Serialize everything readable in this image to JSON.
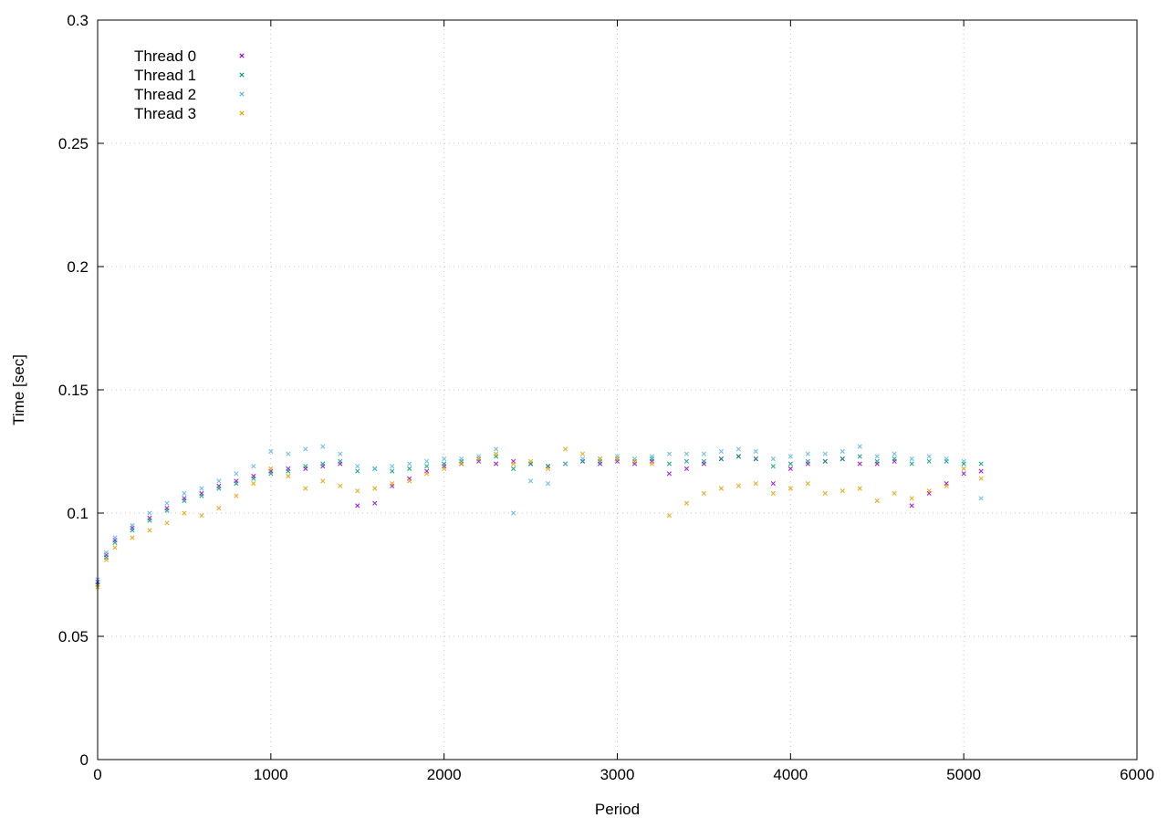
{
  "chart_data": {
    "type": "scatter",
    "title": "",
    "xlabel": "Period",
    "ylabel": "Time [sec]",
    "xlim": [
      0,
      6000
    ],
    "ylim": [
      0,
      0.3
    ],
    "xticks": [
      0,
      1000,
      2000,
      3000,
      4000,
      5000,
      6000
    ],
    "yticks": [
      0,
      0.05,
      0.1,
      0.15,
      0.2,
      0.25,
      0.3
    ],
    "xtick_labels": [
      "0",
      "1000",
      "2000",
      "3000",
      "4000",
      "5000",
      "6000"
    ],
    "ytick_labels": [
      "0",
      "0.05",
      "0.1",
      "0.15",
      "0.2",
      "0.25",
      "0.3"
    ],
    "grid": true,
    "legend_position": "top-left",
    "series": [
      {
        "name": "Thread 0",
        "color": "#9400d3",
        "marker": "cross",
        "x": [
          0,
          50,
          100,
          200,
          300,
          400,
          500,
          600,
          700,
          800,
          900,
          1000,
          1100,
          1200,
          1300,
          1400,
          1500,
          1600,
          1700,
          1800,
          1900,
          2000,
          2100,
          2200,
          2300,
          2400,
          2500,
          2600,
          2700,
          2800,
          2900,
          3000,
          3100,
          3200,
          3300,
          3400,
          3500,
          3600,
          3700,
          3800,
          3900,
          4000,
          4100,
          4200,
          4300,
          4400,
          4500,
          4600,
          4700,
          4800,
          4900,
          5000,
          5100
        ],
        "y": [
          0.072,
          0.083,
          0.089,
          0.094,
          0.098,
          0.102,
          0.106,
          0.108,
          0.111,
          0.113,
          0.115,
          0.117,
          0.118,
          0.118,
          0.119,
          0.12,
          0.103,
          0.104,
          0.111,
          0.114,
          0.117,
          0.119,
          0.12,
          0.121,
          0.12,
          0.121,
          0.12,
          0.119,
          0.12,
          0.121,
          0.12,
          0.121,
          0.12,
          0.121,
          0.116,
          0.118,
          0.12,
          0.122,
          0.123,
          0.122,
          0.112,
          0.118,
          0.12,
          0.121,
          0.122,
          0.12,
          0.12,
          0.121,
          0.103,
          0.108,
          0.112,
          0.116,
          0.117
        ]
      },
      {
        "name": "Thread 1",
        "color": "#009e73",
        "marker": "cross",
        "x": [
          0,
          50,
          100,
          200,
          300,
          400,
          500,
          600,
          700,
          800,
          900,
          1000,
          1100,
          1200,
          1300,
          1400,
          1500,
          1600,
          1700,
          1800,
          1900,
          2000,
          2100,
          2200,
          2300,
          2400,
          2500,
          2600,
          2700,
          2800,
          2900,
          3000,
          3100,
          3200,
          3300,
          3400,
          3500,
          3600,
          3700,
          3800,
          3900,
          4000,
          4100,
          4200,
          4300,
          4400,
          4500,
          4600,
          4700,
          4800,
          4900,
          5000,
          5100
        ],
        "y": [
          0.071,
          0.082,
          0.088,
          0.093,
          0.097,
          0.101,
          0.105,
          0.107,
          0.11,
          0.112,
          0.114,
          0.116,
          0.117,
          0.119,
          0.12,
          0.121,
          0.117,
          0.118,
          0.117,
          0.118,
          0.119,
          0.12,
          0.121,
          0.122,
          0.123,
          0.118,
          0.12,
          0.119,
          0.12,
          0.121,
          0.121,
          0.122,
          0.121,
          0.122,
          0.12,
          0.121,
          0.121,
          0.122,
          0.123,
          0.122,
          0.119,
          0.12,
          0.121,
          0.121,
          0.122,
          0.123,
          0.121,
          0.122,
          0.12,
          0.121,
          0.121,
          0.12,
          0.12
        ]
      },
      {
        "name": "Thread 2",
        "color": "#56b4e9",
        "marker": "cross",
        "x": [
          0,
          50,
          100,
          200,
          300,
          400,
          500,
          600,
          700,
          800,
          900,
          1000,
          1100,
          1200,
          1300,
          1400,
          1500,
          1600,
          1700,
          1800,
          1900,
          2000,
          2100,
          2200,
          2300,
          2400,
          2500,
          2600,
          2700,
          2800,
          2900,
          3000,
          3100,
          3200,
          3300,
          3400,
          3500,
          3600,
          3700,
          3800,
          3900,
          4000,
          4100,
          4200,
          4300,
          4400,
          4500,
          4600,
          4700,
          4800,
          4900,
          5000,
          5100
        ],
        "y": [
          0.073,
          0.084,
          0.09,
          0.095,
          0.1,
          0.104,
          0.108,
          0.11,
          0.113,
          0.116,
          0.119,
          0.125,
          0.124,
          0.126,
          0.127,
          0.124,
          0.119,
          0.118,
          0.119,
          0.12,
          0.121,
          0.122,
          0.122,
          0.123,
          0.126,
          0.1,
          0.113,
          0.112,
          0.12,
          0.122,
          0.122,
          0.123,
          0.122,
          0.123,
          0.124,
          0.124,
          0.124,
          0.125,
          0.126,
          0.125,
          0.122,
          0.123,
          0.124,
          0.124,
          0.125,
          0.127,
          0.123,
          0.124,
          0.122,
          0.123,
          0.122,
          0.121,
          0.106
        ]
      },
      {
        "name": "Thread 3",
        "color": "#e69f00",
        "marker": "cross",
        "x": [
          0,
          50,
          100,
          200,
          300,
          400,
          500,
          600,
          700,
          800,
          900,
          1000,
          1100,
          1200,
          1300,
          1400,
          1500,
          1600,
          1700,
          1800,
          1900,
          2000,
          2100,
          2200,
          2300,
          2400,
          2500,
          2600,
          2700,
          2800,
          2900,
          3000,
          3100,
          3200,
          3300,
          3400,
          3500,
          3600,
          3700,
          3800,
          3900,
          4000,
          4100,
          4200,
          4300,
          4400,
          4500,
          4600,
          4700,
          4800,
          4900,
          5000,
          5100
        ],
        "y": [
          0.07,
          0.081,
          0.086,
          0.09,
          0.093,
          0.096,
          0.1,
          0.099,
          0.102,
          0.107,
          0.112,
          0.118,
          0.115,
          0.11,
          0.113,
          0.111,
          0.109,
          0.11,
          0.112,
          0.113,
          0.116,
          0.118,
          0.12,
          0.122,
          0.124,
          0.12,
          0.121,
          0.118,
          0.126,
          0.124,
          0.122,
          0.122,
          0.121,
          0.12,
          0.099,
          0.104,
          0.108,
          0.11,
          0.111,
          0.112,
          0.108,
          0.11,
          0.112,
          0.108,
          0.109,
          0.11,
          0.105,
          0.108,
          0.106,
          0.109,
          0.111,
          0.118,
          0.114
        ]
      }
    ]
  }
}
